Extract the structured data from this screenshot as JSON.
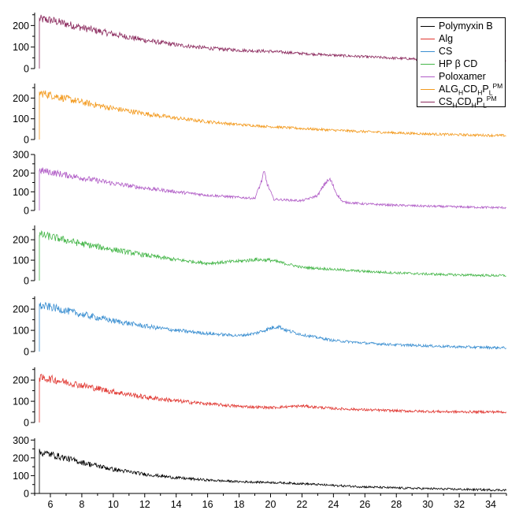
{
  "chart_data": {
    "type": "line",
    "title": "",
    "xlabel": "",
    "ylabel": "",
    "xlim": [
      5,
      35
    ],
    "x_ticks": [
      6,
      8,
      10,
      12,
      14,
      16,
      18,
      20,
      22,
      24,
      26,
      28,
      30,
      32,
      34
    ],
    "legend_position": "top-right",
    "grid": false,
    "panels": [
      {
        "series": "CS_H CD_H P_L^PM",
        "color": "#8b2a5e",
        "ylim": [
          0,
          260
        ],
        "y_ticks": [
          0,
          100,
          200
        ],
        "points": [
          [
            5.3,
            230
          ],
          [
            6,
            225
          ],
          [
            8,
            190
          ],
          [
            10,
            160
          ],
          [
            12,
            132
          ],
          [
            14,
            110
          ],
          [
            16,
            95
          ],
          [
            18,
            85
          ],
          [
            20,
            80
          ],
          [
            22,
            70
          ],
          [
            24,
            62
          ],
          [
            26,
            55
          ],
          [
            28,
            48
          ],
          [
            30,
            42
          ],
          [
            32,
            37
          ],
          [
            34,
            33
          ],
          [
            35,
            31
          ]
        ]
      },
      {
        "series": "ALG_H CD_H P_L^PM",
        "color": "#f39a1e",
        "ylim": [
          0,
          270
        ],
        "y_ticks": [
          0,
          100,
          200
        ],
        "points": [
          [
            5.3,
            225
          ],
          [
            6,
            215
          ],
          [
            8,
            180
          ],
          [
            10,
            150
          ],
          [
            12,
            125
          ],
          [
            14,
            103
          ],
          [
            16,
            86
          ],
          [
            18,
            72
          ],
          [
            20,
            62
          ],
          [
            22,
            53
          ],
          [
            24,
            45
          ],
          [
            26,
            38
          ],
          [
            28,
            32
          ],
          [
            30,
            27
          ],
          [
            32,
            23
          ],
          [
            34,
            20
          ],
          [
            35,
            19
          ]
        ]
      },
      {
        "series": "Poloxamer",
        "color": "#b05cc6",
        "ylim": [
          0,
          300
        ],
        "y_ticks": [
          0,
          100,
          200,
          300
        ],
        "points": [
          [
            5.3,
            215
          ],
          [
            6,
            205
          ],
          [
            8,
            175
          ],
          [
            10,
            145
          ],
          [
            12,
            120
          ],
          [
            14,
            100
          ],
          [
            16,
            82
          ],
          [
            18,
            70
          ],
          [
            19,
            65
          ],
          [
            19.4,
            150
          ],
          [
            19.6,
            205
          ],
          [
            19.8,
            140
          ],
          [
            20.2,
            60
          ],
          [
            22,
            52
          ],
          [
            23,
            80
          ],
          [
            23.5,
            150
          ],
          [
            23.8,
            165
          ],
          [
            24.2,
            90
          ],
          [
            24.6,
            45
          ],
          [
            26,
            35
          ],
          [
            28,
            28
          ],
          [
            30,
            23
          ],
          [
            32,
            19
          ],
          [
            34,
            16
          ],
          [
            35,
            15
          ]
        ]
      },
      {
        "series": "HP β CD",
        "color": "#45b649",
        "ylim": [
          0,
          270
        ],
        "y_ticks": [
          0,
          100,
          200
        ],
        "points": [
          [
            5.3,
            225
          ],
          [
            6,
            215
          ],
          [
            8,
            180
          ],
          [
            10,
            152
          ],
          [
            12,
            125
          ],
          [
            14,
            102
          ],
          [
            16,
            85
          ],
          [
            18,
            95
          ],
          [
            19,
            103
          ],
          [
            20,
            100
          ],
          [
            22,
            65
          ],
          [
            24,
            55
          ],
          [
            26,
            45
          ],
          [
            28,
            38
          ],
          [
            30,
            32
          ],
          [
            32,
            28
          ],
          [
            34,
            25
          ],
          [
            35,
            25
          ]
        ]
      },
      {
        "series": "CS",
        "color": "#3b8fd1",
        "ylim": [
          0,
          260
        ],
        "y_ticks": [
          0,
          100,
          200
        ],
        "points": [
          [
            5.3,
            215
          ],
          [
            6,
            210
          ],
          [
            8,
            175
          ],
          [
            10,
            145
          ],
          [
            12,
            120
          ],
          [
            14,
            100
          ],
          [
            16,
            85
          ],
          [
            18,
            75
          ],
          [
            19,
            85
          ],
          [
            20,
            110
          ],
          [
            20.5,
            120
          ],
          [
            21,
            100
          ],
          [
            22,
            80
          ],
          [
            24,
            52
          ],
          [
            26,
            40
          ],
          [
            28,
            32
          ],
          [
            30,
            27
          ],
          [
            32,
            22
          ],
          [
            34,
            19
          ],
          [
            35,
            18
          ]
        ]
      },
      {
        "series": "Alg",
        "color": "#e0352f",
        "ylim": [
          0,
          260
        ],
        "y_ticks": [
          0,
          100,
          200
        ],
        "points": [
          [
            5.3,
            210
          ],
          [
            6,
            205
          ],
          [
            8,
            175
          ],
          [
            10,
            145
          ],
          [
            12,
            120
          ],
          [
            14,
            102
          ],
          [
            16,
            88
          ],
          [
            18,
            76
          ],
          [
            20,
            70
          ],
          [
            22,
            78
          ],
          [
            24,
            66
          ],
          [
            26,
            60
          ],
          [
            28,
            55
          ],
          [
            30,
            52
          ],
          [
            32,
            50
          ],
          [
            34,
            50
          ],
          [
            35,
            50
          ]
        ]
      },
      {
        "series": "Polymyxin B",
        "color": "#000000",
        "ylim": [
          0,
          310
        ],
        "y_ticks": [
          0,
          100,
          200,
          300
        ],
        "points": [
          [
            5.3,
            230
          ],
          [
            6,
            220
          ],
          [
            8,
            175
          ],
          [
            10,
            135
          ],
          [
            12,
            108
          ],
          [
            14,
            88
          ],
          [
            16,
            75
          ],
          [
            18,
            66
          ],
          [
            20,
            62
          ],
          [
            22,
            55
          ],
          [
            24,
            45
          ],
          [
            26,
            37
          ],
          [
            28,
            31
          ],
          [
            30,
            27
          ],
          [
            32,
            23
          ],
          [
            34,
            20
          ],
          [
            35,
            19
          ]
        ]
      }
    ],
    "legend": [
      {
        "label": "Polymyxin B",
        "color": "#000000"
      },
      {
        "label": "Alg",
        "color": "#e0352f"
      },
      {
        "label": "CS",
        "color": "#3b8fd1"
      },
      {
        "label": "HP β CD",
        "color": "#45b649"
      },
      {
        "label": "Poloxamer",
        "color": "#b05cc6"
      },
      {
        "label": "ALG_H CD_H P_L^PM",
        "color": "#f39a1e"
      },
      {
        "label": "CS_H CD_H P_L^PM",
        "color": "#8b2a5e"
      }
    ]
  }
}
